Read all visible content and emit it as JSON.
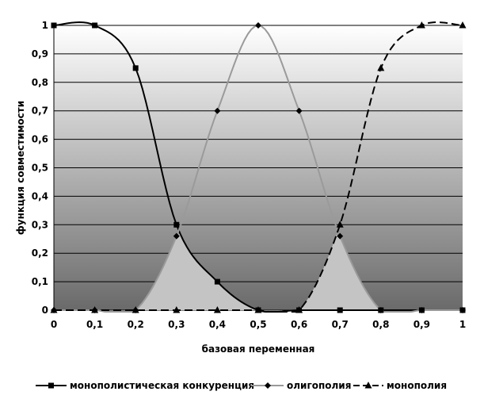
{
  "chart_data": {
    "type": "line",
    "xlabel": "базовая переменная",
    "ylabel": "функция совместимости",
    "xlim": [
      0,
      1
    ],
    "ylim": [
      0,
      1
    ],
    "x_ticks": [
      "0",
      "0,1",
      "0,2",
      "0,3",
      "0,4",
      "0,5",
      "0,6",
      "0,7",
      "0,8",
      "0,9",
      "1"
    ],
    "y_ticks": [
      "0",
      "0,1",
      "0,2",
      "0,3",
      "0,4",
      "0,5",
      "0,6",
      "0,7",
      "0,8",
      "0,9",
      "1"
    ],
    "grid": true,
    "legend_position": "bottom",
    "series": [
      {
        "name": "монополистическая конкуренция",
        "marker": "square",
        "line_style": "solid",
        "color": "#000000",
        "x": [
          0,
          0.1,
          0.2,
          0.3,
          0.4,
          0.5,
          0.6,
          0.7,
          0.8,
          0.9,
          1
        ],
        "y": [
          1,
          1,
          0.85,
          0.3,
          0.1,
          0,
          0,
          0,
          0,
          0,
          0
        ]
      },
      {
        "name": "олигополия",
        "marker": "diamond",
        "line_style": "solid",
        "color": "#9a9a9a",
        "x": [
          0,
          0.1,
          0.2,
          0.3,
          0.4,
          0.5,
          0.6,
          0.7,
          0.8,
          0.9,
          1
        ],
        "y": [
          0,
          0,
          0,
          0.26,
          0.7,
          1,
          0.7,
          0.26,
          0,
          0,
          0
        ]
      },
      {
        "name": "монополия",
        "marker": "triangle",
        "line_style": "dashed",
        "color": "#000000",
        "x": [
          0,
          0.1,
          0.2,
          0.3,
          0.4,
          0.5,
          0.6,
          0.7,
          0.8,
          0.9,
          1
        ],
        "y": [
          0,
          0,
          0,
          0,
          0,
          0,
          0,
          0.3,
          0.85,
          1,
          1
        ]
      }
    ]
  }
}
